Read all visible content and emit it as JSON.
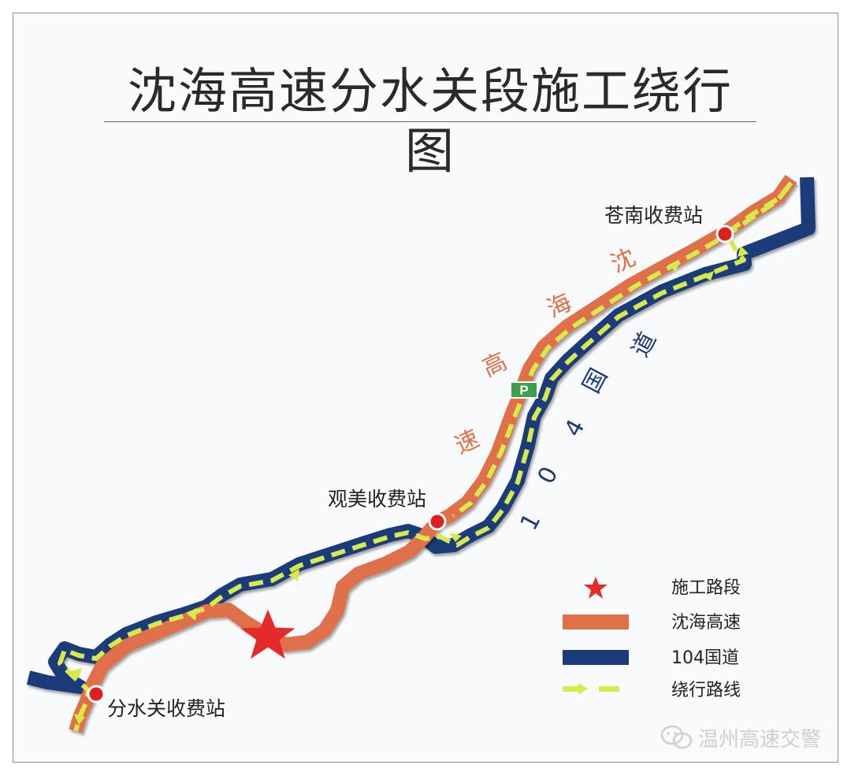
{
  "title": "沈海高速分水关段施工绕行图",
  "stations": {
    "cangnan": "苍南收费站",
    "guanmei": "观美收费站",
    "fenshuiguan": "分水关收费站"
  },
  "road_labels": {
    "shenhai_chars": [
      "沈",
      "海",
      "高",
      "速"
    ],
    "g104_chars": [
      "道",
      "国",
      "4",
      "0",
      "1"
    ]
  },
  "parking_sign": "P",
  "legend": {
    "construction": "施工路段",
    "shenhai": "沈海高速",
    "g104": "104国道",
    "detour": "绕行路线"
  },
  "colors": {
    "shenhai": "#e07048",
    "g104": "#1b3a7a",
    "detour": "#d7ea4a",
    "station_dot": "#e02020",
    "construction_star": "#e52a2a",
    "parking": "#3aa04a"
  },
  "watermark": "温州高速交警"
}
